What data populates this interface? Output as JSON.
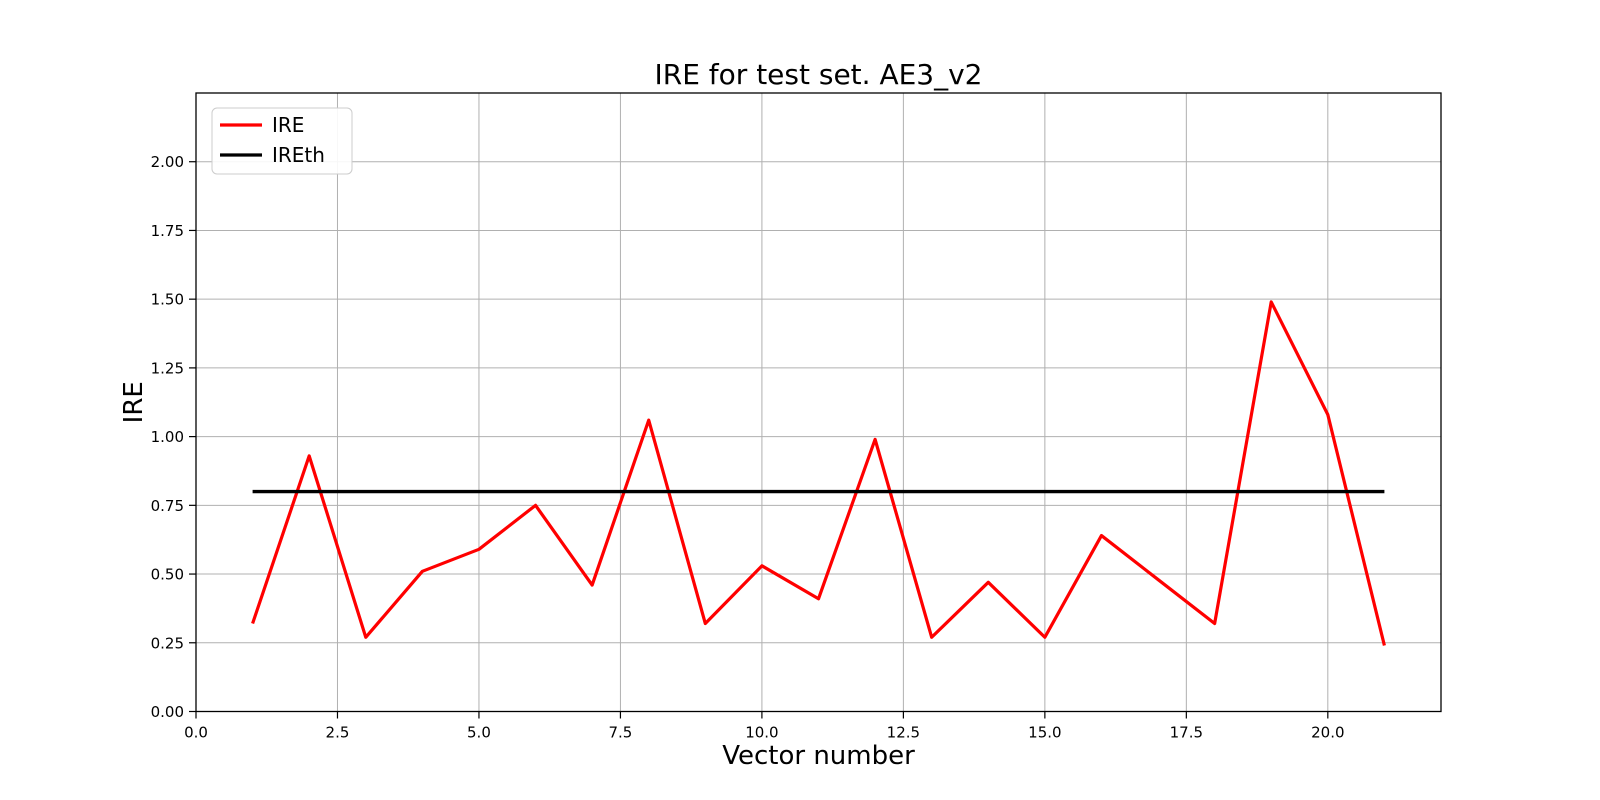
{
  "chart_data": {
    "type": "line",
    "title": "IRE for test set. AE3_v2",
    "xlabel": "Vector number",
    "ylabel": "IRE",
    "xlim": [
      0,
      22
    ],
    "ylim": [
      0,
      2.25
    ],
    "grid": true,
    "legend_position": "upper left",
    "x": [
      1,
      2,
      3,
      4,
      5,
      6,
      7,
      8,
      9,
      10,
      11,
      12,
      13,
      14,
      15,
      16,
      17,
      18,
      19,
      20,
      21
    ],
    "series": [
      {
        "name": "IRE",
        "color": "#ff0000",
        "values": [
          0.32,
          0.93,
          0.27,
          0.51,
          0.59,
          0.75,
          0.46,
          1.06,
          0.32,
          0.53,
          0.41,
          0.99,
          0.27,
          0.47,
          0.27,
          0.64,
          0.48,
          0.32,
          1.49,
          1.08,
          0.24
        ]
      },
      {
        "name": "IREth",
        "color": "#000000",
        "values": [
          0.8,
          0.8,
          0.8,
          0.8,
          0.8,
          0.8,
          0.8,
          0.8,
          0.8,
          0.8,
          0.8,
          0.8,
          0.8,
          0.8,
          0.8,
          0.8,
          0.8,
          0.8,
          0.8,
          0.8,
          0.8
        ]
      }
    ],
    "xticks": {
      "values": [
        0,
        2.5,
        5,
        7.5,
        10,
        12.5,
        15,
        17.5,
        20
      ],
      "labels": [
        "0.0",
        "2.5",
        "5.0",
        "7.5",
        "10.0",
        "12.5",
        "15.0",
        "17.5",
        "20.0"
      ]
    },
    "yticks": {
      "values": [
        0,
        0.25,
        0.5,
        0.75,
        1,
        1.25,
        1.5,
        1.75,
        2
      ],
      "labels": [
        "0.00",
        "0.25",
        "0.50",
        "0.75",
        "1.00",
        "1.25",
        "1.50",
        "1.75",
        "2.00"
      ]
    }
  },
  "colors": {
    "grid": "#b0b0b0",
    "spine": "#000000",
    "background": "#ffffff",
    "legend_border": "#cccccc",
    "legend_fill": "#ffffff"
  }
}
